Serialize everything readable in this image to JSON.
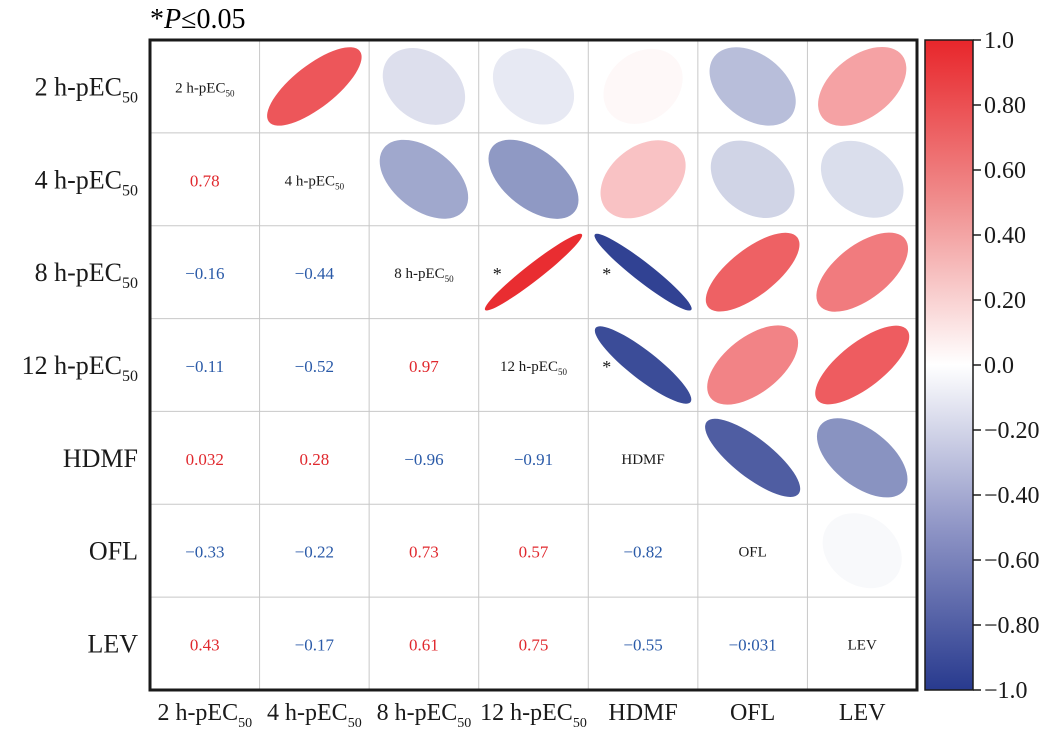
{
  "annotation": {
    "symbol": "*",
    "variable": "P",
    "rest": "≤0.05"
  },
  "colors": {
    "positive": "#e8262b",
    "negative": "#283a8e",
    "neutral": "#ffffff",
    "grid": "#c8c8c8",
    "frame": "#1a1a1a",
    "text": "#1a1a1a"
  },
  "chart_data": {
    "type": "heatmap",
    "variables": [
      {
        "label": "2 h-pEC",
        "sub": "50"
      },
      {
        "label": "4 h-pEC",
        "sub": "50"
      },
      {
        "label": "8 h-pEC",
        "sub": "50"
      },
      {
        "label": "12 h-pEC",
        "sub": "50"
      },
      {
        "label": "HDMF",
        "sub": ""
      },
      {
        "label": "OFL",
        "sub": ""
      },
      {
        "label": "LEV",
        "sub": ""
      }
    ],
    "lower_labels": [
      [
        null,
        null,
        null,
        null,
        null,
        null,
        null
      ],
      [
        "0.78",
        null,
        null,
        null,
        null,
        null,
        null
      ],
      [
        "−0.16",
        "−0.44",
        null,
        null,
        null,
        null,
        null
      ],
      [
        "−0.11",
        "−0.52",
        "0.97",
        null,
        null,
        null,
        null
      ],
      [
        "0.032",
        "0.28",
        "−0.96",
        "−0.91",
        null,
        null,
        null
      ],
      [
        "−0.33",
        "−0.22",
        "0.73",
        "0.57",
        "−0.82",
        null,
        null
      ],
      [
        "0.43",
        "−0.17",
        "0.61",
        "0.75",
        "−0.55",
        "−0:031",
        null
      ]
    ],
    "matrix": [
      [
        1.0,
        0.78,
        -0.16,
        -0.11,
        0.032,
        -0.33,
        0.43
      ],
      [
        0.78,
        1.0,
        -0.44,
        -0.52,
        0.28,
        -0.22,
        -0.17
      ],
      [
        -0.16,
        -0.44,
        1.0,
        0.97,
        -0.96,
        0.73,
        0.61
      ],
      [
        -0.11,
        -0.52,
        0.97,
        1.0,
        -0.91,
        0.57,
        0.75
      ],
      [
        0.032,
        0.28,
        -0.96,
        -0.91,
        1.0,
        -0.82,
        -0.55
      ],
      [
        -0.33,
        -0.22,
        0.73,
        0.57,
        -0.82,
        1.0,
        -0.031
      ],
      [
        0.43,
        -0.17,
        0.61,
        0.75,
        -0.55,
        -0.031,
        1.0
      ]
    ],
    "significant": [
      [
        2,
        3
      ],
      [
        2,
        4
      ],
      [
        3,
        4
      ]
    ],
    "significance_marker": "*",
    "colorbar": {
      "range": [
        -1.0,
        1.0
      ],
      "ticks": [
        "1.0",
        "0.80",
        "0.60",
        "0.40",
        "0.20",
        "0.0",
        "−0.20",
        "−0.40",
        "−0.60",
        "−0.80",
        "−1.0"
      ]
    }
  }
}
